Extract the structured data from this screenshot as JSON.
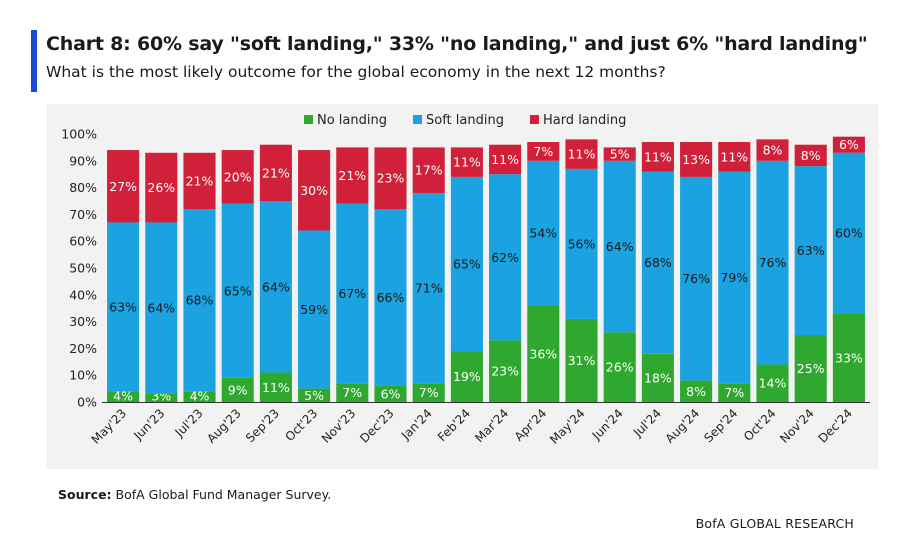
{
  "header": {
    "title": "Chart 8: 60% say \"soft landing,\" 33% \"no landing,\" and just 6% \"hard landing\"",
    "subtitle": "What is the most likely outcome for the global economy in the next 12 months?"
  },
  "footer": {
    "source_label": "Source:",
    "source_text": " BofA Global Fund Manager Survey.",
    "brand": "BofA GLOBAL RESEARCH"
  },
  "colors": {
    "accent": "#1a4bd6",
    "no_landing": "#2ea82e",
    "soft_landing": "#1aa3e0",
    "hard_landing": "#d0203a"
  },
  "chart_data": {
    "type": "bar",
    "stacked": true,
    "categories": [
      "May'23",
      "Jun'23",
      "Jul'23",
      "Aug'23",
      "Sep'23",
      "Oct'23",
      "Nov'23",
      "Dec'23",
      "Jan'24",
      "Feb'24",
      "Mar'24",
      "Apr'24",
      "May'24",
      "Jun'24",
      "Jul'24",
      "Aug'24",
      "Sep'24",
      "Oct'24",
      "Nov'24",
      "Dec'24"
    ],
    "series": [
      {
        "name": "No landing",
        "color": "#2ea82e",
        "values": [
          4,
          3,
          4,
          9,
          11,
          5,
          7,
          6,
          7,
          19,
          23,
          36,
          31,
          26,
          18,
          8,
          7,
          14,
          25,
          33
        ],
        "labels": [
          "4%",
          "3%",
          "4%",
          "9%",
          "11%",
          "5%",
          "7%",
          "6%",
          "7%",
          "19%",
          "23%",
          "36%",
          "31%",
          "26%",
          "18%",
          "8%",
          "7%",
          "14%",
          "25%",
          "33%"
        ]
      },
      {
        "name": "Soft landing",
        "color": "#1aa3e0",
        "values": [
          63,
          64,
          68,
          65,
          64,
          59,
          67,
          66,
          71,
          65,
          62,
          54,
          56,
          64,
          68,
          76,
          79,
          76,
          63,
          60
        ],
        "labels": [
          "63%",
          "64%",
          "68%",
          "65%",
          "64%",
          "59%",
          "67%",
          "66%",
          "71%",
          "65%",
          "62%",
          "54%",
          "56%",
          "64%",
          "68%",
          "76%",
          "79%",
          "76%",
          "63%",
          "60%"
        ]
      },
      {
        "name": "Hard landing",
        "color": "#d0203a",
        "values": [
          27,
          26,
          21,
          20,
          21,
          30,
          21,
          23,
          17,
          11,
          11,
          7,
          11,
          5,
          11,
          13,
          11,
          8,
          8,
          6
        ],
        "labels": [
          "27%",
          "26%",
          "21%",
          "20%",
          "21%",
          "30%",
          "21%",
          "23%",
          "17%",
          "11%",
          "11%",
          "7%",
          "11%",
          "5%",
          "11%",
          "13%",
          "11%",
          "8%",
          "8%",
          "6%"
        ]
      }
    ],
    "y_ticks": [
      0,
      10,
      20,
      30,
      40,
      50,
      60,
      70,
      80,
      90,
      100
    ],
    "y_tick_labels": [
      "0%",
      "10%",
      "20%",
      "30%",
      "40%",
      "50%",
      "60%",
      "70%",
      "80%",
      "90%",
      "100%"
    ],
    "ylim": [
      0,
      100
    ],
    "legend_position": "top-center",
    "xlabel": "",
    "ylabel": ""
  }
}
